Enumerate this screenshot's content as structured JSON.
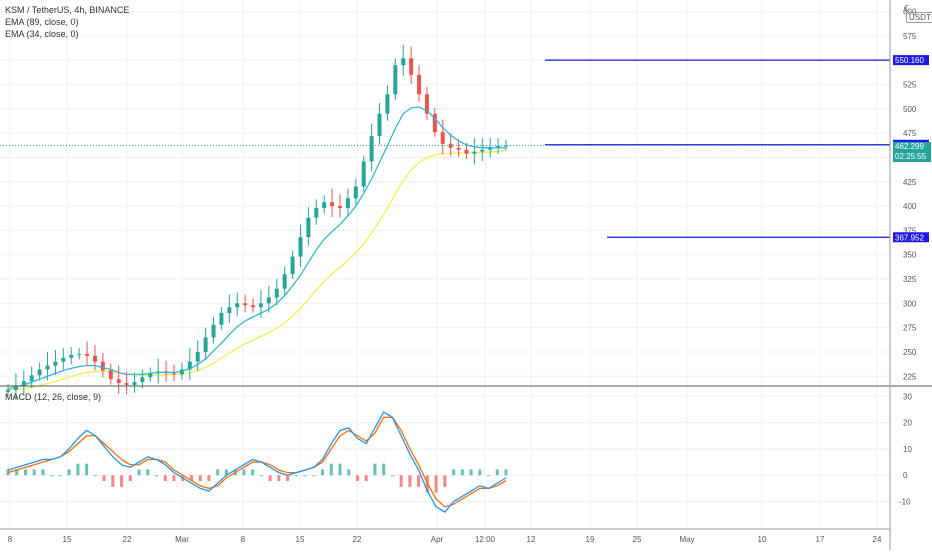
{
  "header": {
    "symbol_line": "KSM / TetherUS, 4h, BINANCE",
    "ema1": "EMA (89, close, 0)",
    "ema2": "EMA (34, close, 0)",
    "macd_label": "MACD (12, 26, close, 9)",
    "currency_btn": "USDT",
    "currency_prefix": "€"
  },
  "colors": {
    "up": "#26a69a",
    "down": "#ef5350",
    "ema34": "#21b6d3",
    "ema89": "#f0ef4e",
    "macd": "#2196f3",
    "signal": "#ff6d00",
    "hline": "#1e18e8",
    "grid": "#eef0f3"
  },
  "chart_data": [
    {
      "type": "candlestick",
      "title": "KSM / TetherUS, 4h, BINANCE",
      "y_ticks": [
        225,
        250,
        275,
        300,
        325,
        350,
        375,
        400,
        425,
        450,
        475,
        500,
        525,
        550,
        575,
        600
      ],
      "ylim": [
        216,
        612
      ],
      "x_ticks": [
        "8",
        "15",
        "22",
        "Mar",
        "8",
        "15",
        "22",
        "Apr",
        "12:00",
        "12",
        "19",
        "25",
        "May",
        "10",
        "17",
        "24"
      ],
      "close_series": [
        211,
        215,
        220,
        226,
        232,
        236,
        240,
        244,
        247,
        248,
        246,
        240,
        231,
        222,
        218,
        216,
        219,
        224,
        228,
        230,
        228,
        227,
        232,
        240,
        250,
        265,
        278,
        290,
        296,
        300,
        298,
        296,
        300,
        306,
        315,
        330,
        348,
        368,
        388,
        398,
        404,
        400,
        398,
        408,
        420,
        446,
        472,
        495,
        515,
        545,
        552,
        535,
        515,
        495,
        476,
        464,
        460,
        458,
        454,
        456,
        458,
        460,
        462,
        462.3
      ],
      "ema34_series": [
        212,
        214,
        216,
        219,
        222,
        225,
        228,
        231,
        233,
        235,
        236,
        236,
        234,
        232,
        229,
        227,
        227,
        227,
        228,
        229,
        229,
        229,
        230,
        233,
        237,
        243,
        251,
        259,
        268,
        276,
        282,
        286,
        290,
        294,
        300,
        308,
        318,
        329,
        342,
        355,
        366,
        374,
        381,
        390,
        400,
        413,
        428,
        445,
        462,
        480,
        495,
        501,
        502,
        498,
        490,
        481,
        473,
        467,
        463,
        461,
        460,
        460,
        460,
        460
      ]
    },
    {
      "type": "line",
      "title": "MACD (12, 26, close, 9)",
      "y_ticks": [
        -10,
        0,
        10,
        20,
        30
      ],
      "ylim": [
        -17,
        32
      ],
      "series": [
        {
          "name": "MACD",
          "values": [
            2,
            3,
            4,
            5,
            6,
            6,
            7,
            10,
            14,
            17,
            15,
            11,
            7,
            4,
            3,
            5,
            7,
            6,
            4,
            1,
            -1,
            -3,
            -5,
            -6,
            -3,
            0,
            2,
            4,
            6,
            5,
            3,
            1,
            0,
            1,
            2,
            3,
            6,
            12,
            17,
            18,
            14,
            12,
            18,
            24,
            22,
            15,
            8,
            2,
            -6,
            -12,
            -14,
            -10,
            -8,
            -6,
            -4,
            -5,
            -3,
            -1
          ]
        },
        {
          "name": "Signal",
          "values": [
            1,
            2,
            3,
            4,
            5,
            6,
            7,
            9,
            12,
            15,
            15,
            12,
            9,
            6,
            4,
            4,
            6,
            6,
            5,
            2,
            0,
            -2,
            -4,
            -5,
            -4,
            -1,
            1,
            3,
            5,
            5,
            4,
            2,
            1,
            1,
            2,
            3,
            5,
            10,
            15,
            17,
            15,
            13,
            16,
            22,
            22,
            17,
            10,
            4,
            -3,
            -9,
            -12,
            -11,
            -9,
            -7,
            -5,
            -5,
            -4,
            -2
          ]
        }
      ]
    }
  ],
  "price_levels": [
    {
      "label": "550.160",
      "value": 550.16
    },
    {
      "label": "463.081",
      "value": 463.081
    },
    {
      "label": "367.952",
      "value": 367.952
    }
  ],
  "current_price": {
    "value": "462.299",
    "countdown": "02:25:55"
  }
}
